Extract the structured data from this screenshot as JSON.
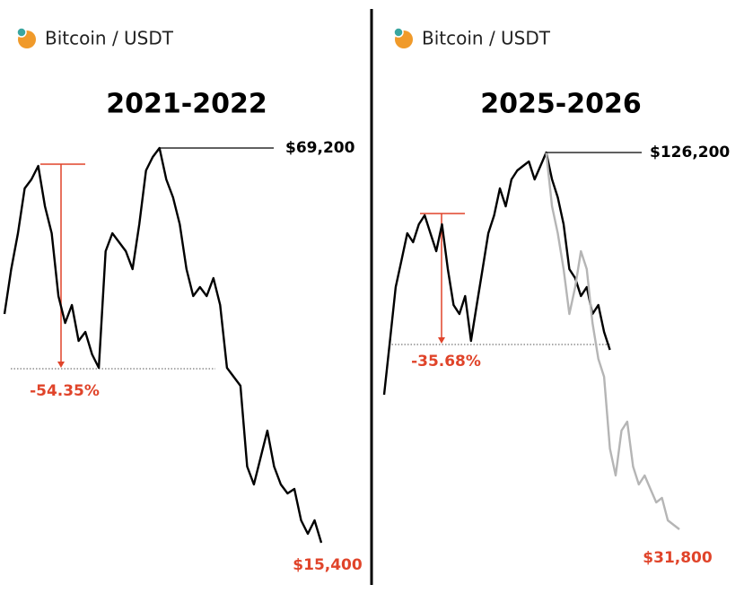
{
  "chart_data": [
    {
      "type": "line",
      "header": "Bitcoin / USDT",
      "title": "2021-2022",
      "series": [
        {
          "color": "#000000",
          "values": [
            46580,
            52690,
            57580,
            63700,
            64920,
            66750,
            61250,
            57580,
            49030,
            45360,
            47800,
            42910,
            44130,
            41080,
            39240,
            55140,
            57580,
            56360,
            55140,
            52690,
            58810,
            66140,
            67980,
            69200,
            64920,
            62470,
            58810,
            52690,
            49030,
            50250,
            49030,
            51470,
            47800,
            39240,
            38020,
            36800,
            25790,
            23350,
            27020,
            30680,
            25790,
            23350,
            22130,
            22740,
            18460,
            16620,
            18460,
            15400
          ]
        }
      ],
      "peak": {
        "value": 69200,
        "label": "$69,200"
      },
      "end": {
        "value": 15400,
        "label": "$15,400"
      },
      "drawdown": {
        "value": -54.35,
        "label": "-54.35%"
      }
    },
    {
      "type": "line",
      "header": "Bitcoin / USDT",
      "title": "2025-2026",
      "series": [
        {
          "color": "#000000",
          "values": [
            65515,
            79000,
            92490,
            99230,
            105970,
            103720,
            108220,
            110470,
            105970,
            101480,
            108220,
            96980,
            87990,
            85740,
            90240,
            79000,
            87990,
            96980,
            105970,
            110470,
            117210,
            112710,
            119460,
            121700,
            122830,
            123950,
            119460,
            122830,
            126200,
            119460,
            114960,
            108220,
            96980,
            94730,
            90240,
            92490,
            85740,
            87990,
            81250,
            76750,
            null,
            null,
            null,
            null,
            null,
            null,
            null,
            null,
            null,
            null,
            null,
            null
          ]
        },
        {
          "color": "#b5b5b5",
          "values": [
            null,
            null,
            null,
            null,
            null,
            null,
            null,
            null,
            null,
            null,
            null,
            null,
            null,
            null,
            null,
            null,
            null,
            null,
            null,
            null,
            null,
            null,
            null,
            null,
            null,
            null,
            null,
            null,
            126200,
            112710,
            105970,
            96980,
            85740,
            92490,
            101480,
            96980,
            83500,
            74500,
            70010,
            52030,
            45290,
            56520,
            58770,
            47530,
            43040,
            45290,
            41910,
            38540,
            39660,
            34050,
            32930,
            31800
          ]
        }
      ],
      "peak": {
        "value": 126200,
        "label": "$126,200"
      },
      "end": {
        "value": 31800,
        "label": "$31,800"
      },
      "drawdown": {
        "value": -35.68,
        "label": "-35.68%"
      }
    }
  ]
}
